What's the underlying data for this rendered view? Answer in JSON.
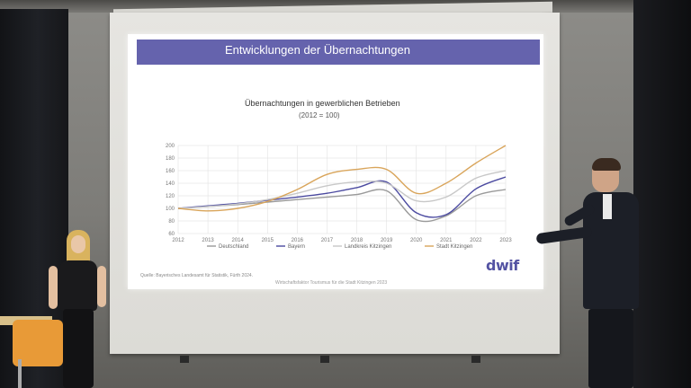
{
  "slide": {
    "title": "Entwicklungen der Übernachtungen",
    "source": "Quelle: Bayerisches Landesamt für Statistik, Fürth 2024.",
    "footer": "Wirtschaftsfaktor Tourismus für die Stadt Kitzingen 2023",
    "logo": "dwif",
    "colors": {
      "header": "#6563ad",
      "logo": "#5453a3"
    }
  },
  "chart_data": {
    "type": "line",
    "title": "Übernachtungen in gewerblichen Betrieben",
    "subtitle": "(2012 = 100)",
    "x": [
      2012,
      2013,
      2014,
      2015,
      2016,
      2017,
      2018,
      2019,
      2020,
      2021,
      2022,
      2023
    ],
    "ylim": [
      60,
      200
    ],
    "yticks": [
      60,
      80,
      100,
      120,
      140,
      160,
      180,
      200
    ],
    "grid": true,
    "legend": "bottom",
    "series": [
      {
        "name": "Deutschland",
        "color": "#9a9a9a",
        "values": [
          100,
          103,
          106,
          110,
          114,
          118,
          122,
          128,
          82,
          88,
          120,
          130
        ]
      },
      {
        "name": "Bayern",
        "color": "#4b4aa0",
        "values": [
          100,
          104,
          108,
          113,
          118,
          124,
          133,
          142,
          93,
          90,
          131,
          150
        ]
      },
      {
        "name": "Landkreis Kitzingen",
        "color": "#c8c8c8",
        "values": [
          100,
          103,
          107,
          114,
          124,
          136,
          142,
          140,
          112,
          118,
          148,
          160
        ]
      },
      {
        "name": "Stadt Kitzingen",
        "color": "#d9a55b",
        "values": [
          100,
          96,
          100,
          111,
          130,
          154,
          162,
          162,
          124,
          140,
          172,
          200
        ]
      }
    ]
  }
}
